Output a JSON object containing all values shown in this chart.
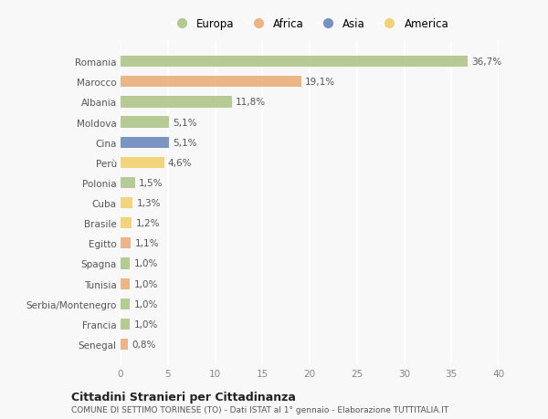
{
  "categories": [
    "Romania",
    "Marocco",
    "Albania",
    "Moldova",
    "Cina",
    "Perù",
    "Polonia",
    "Cuba",
    "Brasile",
    "Egitto",
    "Spagna",
    "Tunisia",
    "Serbia/Montenegro",
    "Francia",
    "Senegal"
  ],
  "values": [
    36.7,
    19.1,
    11.8,
    5.1,
    5.1,
    4.6,
    1.5,
    1.3,
    1.2,
    1.1,
    1.0,
    1.0,
    1.0,
    1.0,
    0.8
  ],
  "labels": [
    "36,7%",
    "19,1%",
    "11,8%",
    "5,1%",
    "5,1%",
    "4,6%",
    "1,5%",
    "1,3%",
    "1,2%",
    "1,1%",
    "1,0%",
    "1,0%",
    "1,0%",
    "1,0%",
    "0,8%"
  ],
  "colors": [
    "#a8c080",
    "#e8a870",
    "#a8c080",
    "#a8c080",
    "#6080b8",
    "#f0cc60",
    "#a8c080",
    "#f0cc60",
    "#f0cc60",
    "#e8a870",
    "#a8c080",
    "#e8a870",
    "#a8c080",
    "#a8c080",
    "#e8a870"
  ],
  "legend": [
    {
      "label": "Europa",
      "color": "#a8c080"
    },
    {
      "label": "Africa",
      "color": "#e8a870"
    },
    {
      "label": "Asia",
      "color": "#6080b8"
    },
    {
      "label": "America",
      "color": "#f0cc60"
    }
  ],
  "xlim": [
    0,
    40
  ],
  "xticks": [
    0,
    5,
    10,
    15,
    20,
    25,
    30,
    35,
    40
  ],
  "title1": "Cittadini Stranieri per Cittadinanza",
  "title2": "COMUNE DI SETTIMO TORINESE (TO) - Dati ISTAT al 1° gennaio - Elaborazione TUTTITALIA.IT",
  "background_color": "#f8f8f8",
  "grid_color": "#ffffff",
  "bar_height": 0.55
}
